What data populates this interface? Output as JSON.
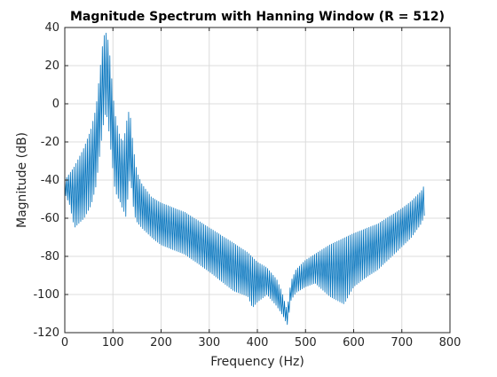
{
  "chart_data": {
    "type": "line",
    "title": "Magnitude Spectrum with Hanning Window (R = 512)",
    "xlabel": "Frequency (Hz)",
    "ylabel": "Magnitude (dB)",
    "xlim": [
      0,
      800
    ],
    "ylim": [
      -120,
      40
    ],
    "xticks": [
      0,
      100,
      200,
      300,
      400,
      500,
      600,
      700,
      800
    ],
    "yticks": [
      -120,
      -100,
      -80,
      -60,
      -40,
      -20,
      0,
      20,
      40
    ],
    "grid": true,
    "legend": "none",
    "line_color": "#0072BD",
    "series": [
      {
        "envelope_upper": {
          "x": [
            0,
            20,
            40,
            55,
            65,
            72,
            78,
            82,
            85,
            88,
            92,
            96,
            100,
            104,
            108,
            112,
            116,
            120,
            124,
            128,
            130,
            133,
            136,
            138,
            142,
            146,
            150,
            160,
            180,
            200,
            250,
            300,
            350,
            380,
            400,
            420,
            440,
            450,
            458,
            462,
            466,
            470,
            480,
            500,
            550,
            600,
            650,
            700,
            720,
            740,
            748
          ],
          "y": [
            -40,
            -33,
            -23,
            -13,
            -2,
            15,
            30,
            36,
            37.5,
            36,
            30,
            18,
            5,
            -5,
            -10,
            -15,
            -18,
            -20,
            -17,
            -10,
            -7,
            -4,
            -6,
            -12,
            -22,
            -30,
            -36,
            -42,
            -49,
            -52,
            -57,
            -65,
            -73,
            -78,
            -83,
            -86,
            -92,
            -98,
            -105,
            -108,
            -100,
            -93,
            -87,
            -82,
            -74,
            -68,
            -63,
            -55,
            -51,
            -46,
            -42
          ]
        },
        "envelope_lower": {
          "x": [
            0,
            10,
            20,
            40,
            55,
            65,
            72,
            78,
            82,
            85,
            88,
            92,
            96,
            100,
            104,
            108,
            112,
            116,
            120,
            124,
            128,
            132,
            136,
            140,
            144,
            150,
            160,
            180,
            200,
            250,
            300,
            350,
            380,
            390,
            400,
            420,
            440,
            455,
            462,
            470,
            480,
            500,
            520,
            550,
            580,
            600,
            620,
            650,
            700,
            720,
            740,
            748
          ],
          "y": [
            -47,
            -53,
            -65,
            -60,
            -53,
            -43,
            -28,
            -15,
            -7,
            -5,
            -7,
            -15,
            -25,
            -35,
            -45,
            -48,
            -50,
            -52,
            -55,
            -57,
            -60,
            -45,
            -38,
            -48,
            -58,
            -62,
            -65,
            -70,
            -74,
            -79,
            -88,
            -98,
            -101,
            -107,
            -104,
            -100,
            -106,
            -112,
            -116,
            -103,
            -99,
            -96,
            -94,
            -101,
            -105,
            -96,
            -92,
            -87,
            -75,
            -70,
            -63,
            -58
          ]
        }
      }
    ]
  }
}
